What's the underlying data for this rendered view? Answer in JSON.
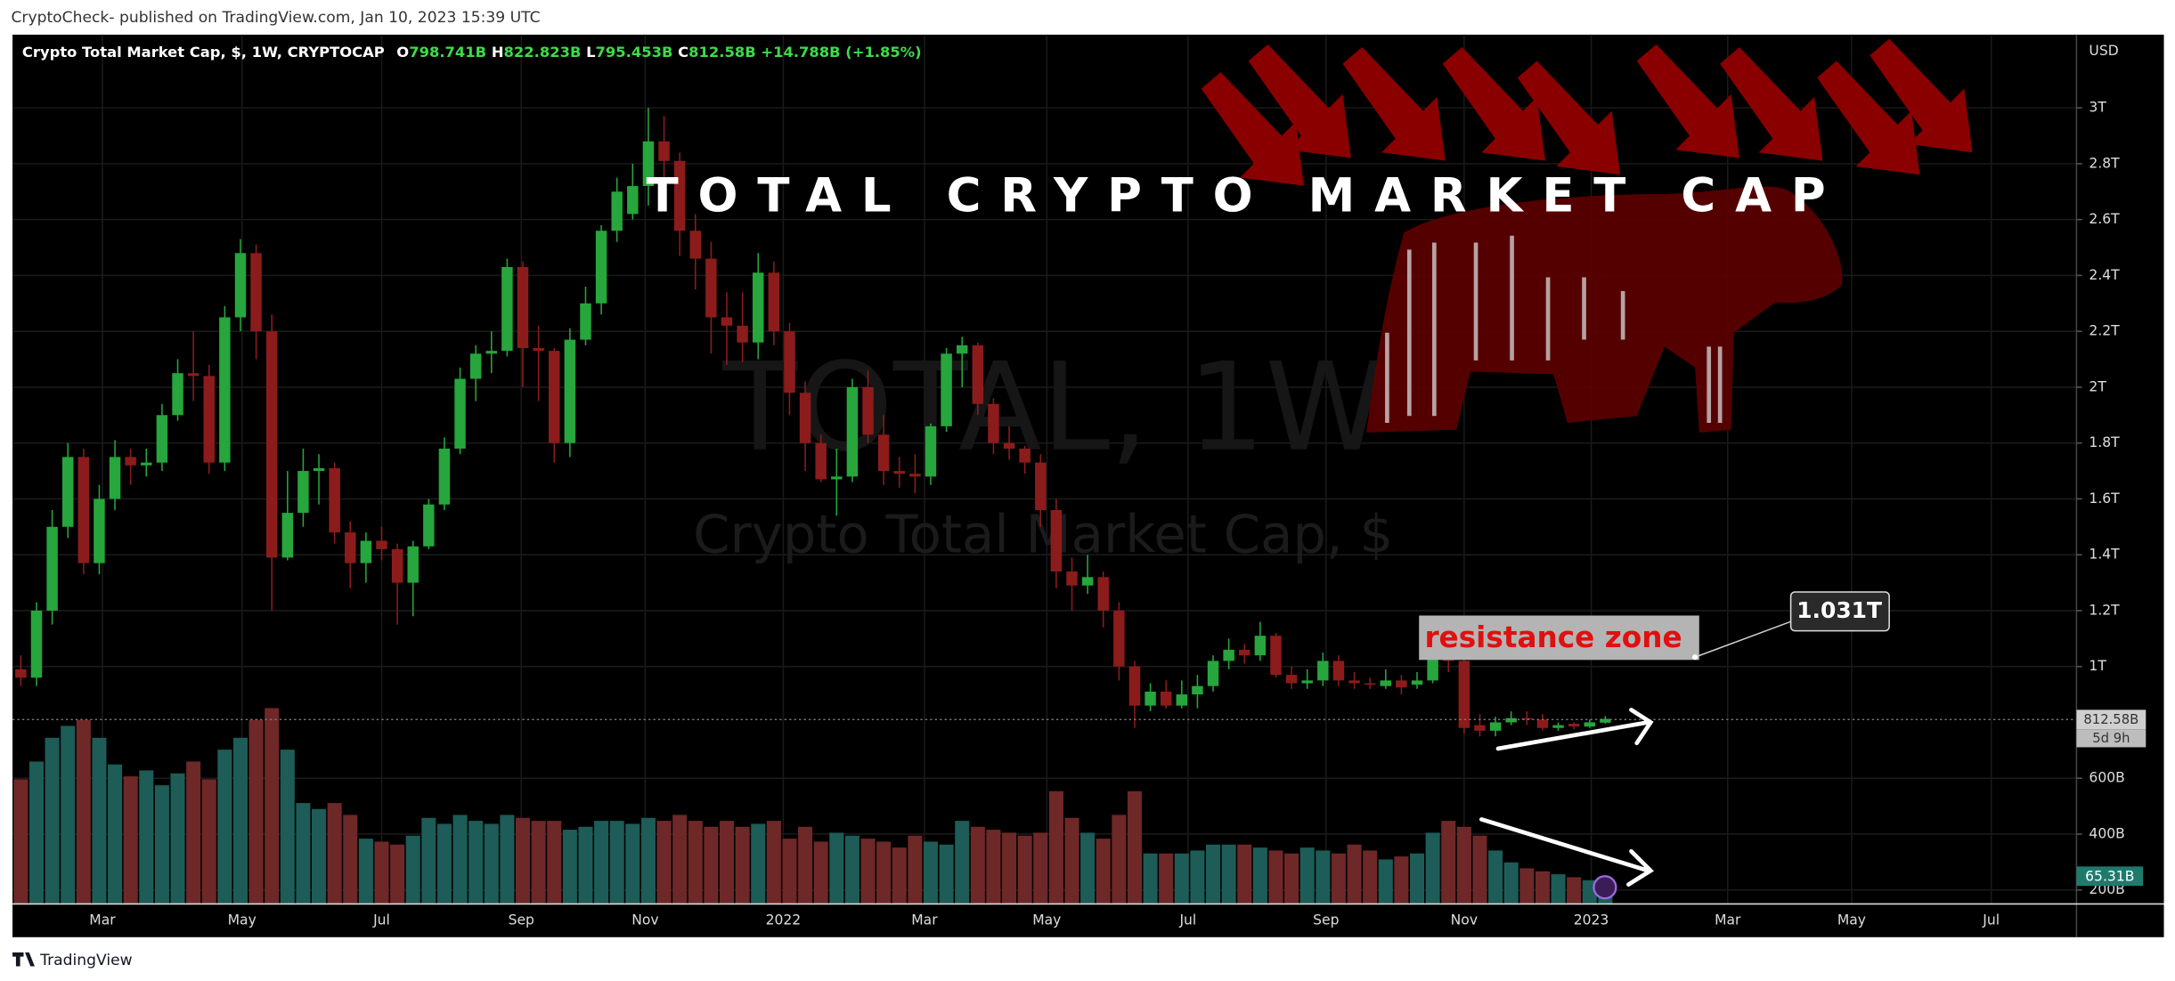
{
  "header": {
    "published": "CryptoCheck- published on TradingView.com, Jan 10, 2023 15:39 UTC"
  },
  "chart_data": {
    "type": "candlestick",
    "title": "TOTAL CRYPTO MARKET CAP",
    "symbol": "Crypto Total Market Cap, $, 1W, CRYPTOCAP",
    "legend": {
      "o": "O",
      "o_value": "798.741B",
      "h": "H",
      "h_value": "822.823B",
      "l": "L",
      "l_value": "795.453B",
      "c": "C",
      "c_value": "812.58B",
      "change": "+14.788B (+1.85%)"
    },
    "watermark": {
      "symbol": "TOTAL, 1W",
      "description": "Crypto Total Market Cap, $"
    },
    "currency": "USD",
    "categories": [
      null,
      null,
      null,
      null,
      null,
      null,
      null,
      null,
      null,
      null,
      null,
      null,
      null,
      null,
      null,
      null,
      null,
      null,
      null,
      null,
      null,
      null,
      null,
      null,
      null,
      null,
      null,
      null,
      null,
      null,
      null,
      null,
      null,
      null,
      null,
      null,
      null,
      null,
      null,
      null,
      null,
      null,
      null,
      null,
      null,
      null,
      null,
      null,
      null,
      null,
      null,
      null,
      null,
      null,
      null,
      null,
      null,
      null,
      null,
      null,
      null,
      null,
      null,
      null,
      null,
      null,
      null,
      null,
      null,
      null,
      null,
      null,
      null,
      null,
      null,
      null,
      null,
      null,
      null,
      null,
      null,
      null,
      null,
      null,
      null,
      null,
      null,
      null,
      null,
      null,
      null,
      null,
      null,
      null,
      null,
      null,
      null,
      null,
      null,
      null,
      null,
      null
    ],
    "open": [
      990,
      960,
      1200,
      1500,
      1750,
      1370,
      1600,
      1750,
      1720,
      1730,
      1900,
      2050,
      2040,
      1730,
      2250,
      2480,
      2200,
      1390,
      1550,
      1700,
      1710,
      1480,
      1370,
      1450,
      1420,
      1300,
      1430,
      1580,
      1780,
      2030,
      2120,
      2130,
      2430,
      2140,
      2130,
      1800,
      2170,
      2300,
      2560,
      2620,
      2720,
      2880,
      2810,
      2560,
      2460,
      2250,
      2220,
      2160,
      2410,
      2200,
      1980,
      1800,
      1670,
      1680,
      2000,
      1830,
      1700,
      1690,
      1680,
      1860,
      2120,
      2150,
      1940,
      1800,
      1780,
      1730,
      1560,
      1340,
      1290,
      1320,
      1200,
      1000,
      860,
      910,
      860,
      900,
      930,
      1020,
      1060,
      1040,
      1110,
      970,
      940,
      950,
      1020,
      950,
      940,
      930,
      950,
      935,
      950,
      1030,
      1020,
      790,
      770,
      800,
      815,
      810,
      780,
      795,
      785,
      798.741
    ],
    "high": [
      1040,
      1230,
      1560,
      1800,
      1780,
      1650,
      1810,
      1780,
      1780,
      1940,
      2100,
      2200,
      2080,
      2290,
      2530,
      2510,
      2260,
      1700,
      1780,
      1760,
      1730,
      1520,
      1480,
      1500,
      1440,
      1450,
      1600,
      1820,
      2070,
      2150,
      2200,
      2460,
      2450,
      2220,
      2140,
      2210,
      2360,
      2580,
      2750,
      2800,
      3000,
      2970,
      2840,
      2620,
      2520,
      2340,
      2340,
      2480,
      2450,
      2230,
      2020,
      1830,
      1780,
      2030,
      2060,
      1900,
      1750,
      1760,
      1870,
      2140,
      2180,
      2160,
      1960,
      1860,
      1790,
      1760,
      1600,
      1390,
      1400,
      1340,
      1230,
      1020,
      940,
      950,
      950,
      970,
      1040,
      1100,
      1080,
      1160,
      1120,
      1000,
      990,
      1050,
      1040,
      980,
      960,
      990,
      970,
      980,
      1060,
      1070,
      1040,
      830,
      820,
      840,
      840,
      830,
      800,
      800,
      810,
      822.823
    ],
    "low": [
      930,
      930,
      1150,
      1460,
      1330,
      1330,
      1560,
      1650,
      1680,
      1700,
      1880,
      1950,
      1690,
      1700,
      2200,
      2100,
      1200,
      1380,
      1500,
      1580,
      1440,
      1280,
      1300,
      1380,
      1150,
      1180,
      1420,
      1560,
      1760,
      1950,
      2050,
      2110,
      2000,
      1950,
      1730,
      1750,
      2150,
      2260,
      2520,
      2600,
      2650,
      2700,
      2470,
      2350,
      2120,
      2080,
      2090,
      2100,
      2150,
      1900,
      1700,
      1660,
      1540,
      1660,
      1800,
      1650,
      1640,
      1620,
      1650,
      1840,
      2000,
      1900,
      1760,
      1740,
      1690,
      1500,
      1280,
      1200,
      1260,
      1140,
      950,
      780,
      840,
      850,
      850,
      850,
      910,
      990,
      1010,
      1020,
      960,
      920,
      920,
      930,
      930,
      920,
      920,
      920,
      900,
      920,
      940,
      980,
      760,
      750,
      750,
      790,
      790,
      770,
      770,
      775,
      780,
      795.453
    ],
    "close": [
      960,
      1200,
      1500,
      1750,
      1370,
      1600,
      1750,
      1720,
      1730,
      1900,
      2050,
      2040,
      1730,
      2250,
      2480,
      2200,
      1390,
      1550,
      1700,
      1710,
      1480,
      1370,
      1450,
      1420,
      1300,
      1430,
      1580,
      1780,
      2030,
      2120,
      2130,
      2430,
      2140,
      2130,
      1800,
      2170,
      2300,
      2560,
      2700,
      2720,
      2880,
      2810,
      2560,
      2460,
      2250,
      2220,
      2160,
      2410,
      2200,
      1980,
      1800,
      1670,
      1680,
      2000,
      1830,
      1700,
      1690,
      1680,
      1860,
      2120,
      2150,
      1940,
      1800,
      1780,
      1730,
      1560,
      1340,
      1290,
      1320,
      1200,
      1000,
      860,
      910,
      860,
      900,
      930,
      1020,
      1060,
      1040,
      1110,
      970,
      940,
      950,
      1020,
      950,
      940,
      935,
      950,
      925,
      950,
      1030,
      1020,
      780,
      770,
      800,
      815,
      810,
      780,
      790,
      785,
      800,
      812.58
    ],
    "volume": [
      420,
      480,
      560,
      600,
      620,
      560,
      470,
      430,
      450,
      400,
      440,
      480,
      420,
      520,
      560,
      620,
      660,
      520,
      340,
      320,
      340,
      300,
      220,
      210,
      200,
      230,
      290,
      270,
      300,
      280,
      270,
      300,
      290,
      280,
      280,
      250,
      260,
      280,
      280,
      270,
      290,
      280,
      300,
      280,
      260,
      280,
      260,
      270,
      280,
      220,
      260,
      210,
      240,
      230,
      220,
      210,
      190,
      230,
      210,
      200,
      280,
      260,
      250,
      240,
      230,
      240,
      380,
      290,
      240,
      220,
      300,
      380,
      170,
      170,
      170,
      180,
      200,
      200,
      200,
      190,
      180,
      170,
      190,
      180,
      170,
      200,
      180,
      150,
      160,
      170,
      240,
      280,
      260,
      230,
      180,
      140,
      120,
      110,
      100,
      90,
      80,
      65.31
    ],
    "colors": {
      "up": "#26a63c",
      "down": "#8c1c1c",
      "volume_up": "#1d5c57",
      "volume_down": "#6e2828"
    },
    "ylim": [
      150,
      3262
    ],
    "yticks": [
      {
        "value": 200,
        "label": "200B"
      },
      {
        "value": 400,
        "label": "400B"
      },
      {
        "value": 600,
        "label": "600B"
      },
      {
        "value": 1000,
        "label": "1T"
      },
      {
        "value": 1200,
        "label": "1.2T"
      },
      {
        "value": 1400,
        "label": "1.4T"
      },
      {
        "value": 1600,
        "label": "1.6T"
      },
      {
        "value": 1800,
        "label": "1.8T"
      },
      {
        "value": 2000,
        "label": "2T"
      },
      {
        "value": 2200,
        "label": "2.2T"
      },
      {
        "value": 2400,
        "label": "2.4T"
      },
      {
        "value": 2600,
        "label": "2.6T"
      },
      {
        "value": 2800,
        "label": "2.8T"
      },
      {
        "value": 3000,
        "label": "3T"
      }
    ],
    "xticks": [
      {
        "value": 5.2,
        "label": "Mar"
      },
      {
        "value": 14.1,
        "label": "May"
      },
      {
        "value": 23.0,
        "label": "Jul"
      },
      {
        "value": 31.9,
        "label": "Sep"
      },
      {
        "value": 39.8,
        "label": "Nov"
      },
      {
        "value": 48.6,
        "label": "2022"
      },
      {
        "value": 57.6,
        "label": "Mar"
      },
      {
        "value": 65.4,
        "label": "May"
      },
      {
        "value": 74.4,
        "label": "Jul"
      },
      {
        "value": 83.2,
        "label": "Sep"
      },
      {
        "value": 92.0,
        "label": "Nov"
      },
      {
        "value": 100.1,
        "label": "2023"
      },
      {
        "value": 108.8,
        "label": "Mar"
      },
      {
        "value": 116.7,
        "label": "May"
      },
      {
        "value": 125.6,
        "label": "Jul"
      }
    ],
    "grid": true,
    "price_label": "812.58B",
    "countdown": "5d 9h",
    "volume_label": "65.31B",
    "annotations": {
      "zone": "resistance zone",
      "callout": "1.031T"
    }
  },
  "footer": {
    "brand": "TradingView"
  }
}
